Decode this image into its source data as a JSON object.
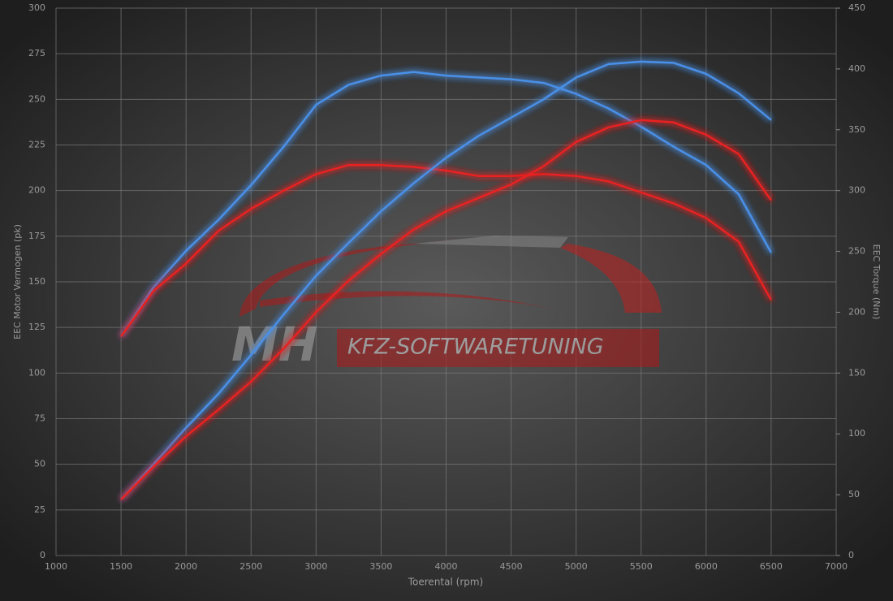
{
  "chart_data": {
    "type": "line",
    "x_label": "Toerental (rpm)",
    "y_label": "EEC Motor Vermogen (pk)",
    "y2_label": "EEC Torque (Nm)",
    "watermark": {
      "brand": "MH",
      "text": "KFZ-SOFTWARETUNING"
    },
    "x": [
      1500,
      1750,
      2000,
      2250,
      2500,
      2750,
      3000,
      3250,
      3500,
      3750,
      4000,
      4250,
      4500,
      4750,
      5000,
      5250,
      5500,
      5750,
      6000,
      6250,
      6500
    ],
    "series": [
      {
        "color": "#4a90e8",
        "values": [
          120,
          147,
          167,
          184,
          203,
          224,
          247,
          258,
          263,
          265,
          263,
          262,
          261,
          259,
          253,
          245,
          235,
          224,
          214,
          198,
          166
        ]
      },
      {
        "color": "#e82424",
        "values": [
          120,
          145,
          160,
          178,
          190,
          200,
          209,
          214,
          214,
          213,
          211,
          208,
          208,
          209,
          208,
          205,
          199,
          193,
          185,
          172,
          140
        ]
      },
      {
        "color": "#4a90e8",
        "axis": "y2",
        "values": [
          46,
          75,
          105,
          133,
          165,
          198,
          230,
          257,
          283,
          306,
          327,
          345,
          360,
          375,
          393,
          404,
          406,
          405,
          396,
          380,
          358
        ]
      },
      {
        "color": "#e82424",
        "axis": "y2",
        "values": [
          46,
          73,
          98,
          120,
          143,
          170,
          200,
          226,
          248,
          268,
          283,
          294,
          305,
          320,
          340,
          352,
          358,
          356,
          346,
          330,
          292
        ]
      }
    ],
    "xlim": [
      1000,
      7000
    ],
    "xticks": [
      1000,
      1500,
      2000,
      2500,
      3000,
      3500,
      4000,
      4500,
      5000,
      5500,
      6000,
      6500,
      7000
    ],
    "ylim": [
      0,
      300
    ],
    "yticks": [
      0,
      25,
      50,
      75,
      100,
      125,
      150,
      175,
      200,
      225,
      250,
      275,
      300
    ],
    "y2lim": [
      0,
      450
    ],
    "y2ticks": [
      0,
      50,
      100,
      150,
      200,
      250,
      300,
      350,
      400,
      450
    ],
    "grid": true
  }
}
